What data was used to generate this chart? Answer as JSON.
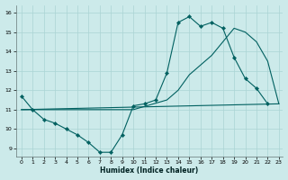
{
  "xlabel": "Humidex (Indice chaleur)",
  "bg_color": "#cceaea",
  "grid_color": "#aad4d4",
  "line_color": "#006060",
  "xlim": [
    -0.5,
    23.3
  ],
  "ylim": [
    8.6,
    16.4
  ],
  "xticks": [
    0,
    1,
    2,
    3,
    4,
    5,
    6,
    7,
    8,
    9,
    10,
    11,
    12,
    13,
    14,
    15,
    16,
    17,
    18,
    19,
    20,
    21,
    22,
    23
  ],
  "yticks": [
    9,
    10,
    11,
    12,
    13,
    14,
    15,
    16
  ],
  "series": [
    {
      "x": [
        0,
        1,
        2,
        3,
        4,
        5,
        6,
        7,
        8,
        9,
        10,
        11,
        12,
        13,
        14,
        15,
        16,
        17,
        18,
        19,
        20,
        21,
        22
      ],
      "y": [
        11.7,
        11.0,
        10.5,
        10.3,
        10.0,
        9.7,
        9.3,
        8.8,
        8.8,
        9.7,
        11.2,
        11.3,
        11.5,
        12.9,
        15.5,
        15.8,
        15.3,
        15.5,
        15.2,
        13.7,
        12.6,
        12.1,
        11.3
      ],
      "marker": true
    },
    {
      "x": [
        0,
        23
      ],
      "y": [
        11.0,
        11.3
      ],
      "marker": false
    },
    {
      "x": [
        0,
        1,
        10,
        13,
        14,
        15,
        16,
        17,
        18,
        19,
        20,
        21,
        22,
        23
      ],
      "y": [
        11.0,
        11.0,
        11.0,
        11.5,
        12.0,
        12.8,
        13.3,
        13.8,
        14.5,
        15.2,
        15.0,
        14.5,
        13.5,
        11.3
      ],
      "marker": false
    }
  ]
}
